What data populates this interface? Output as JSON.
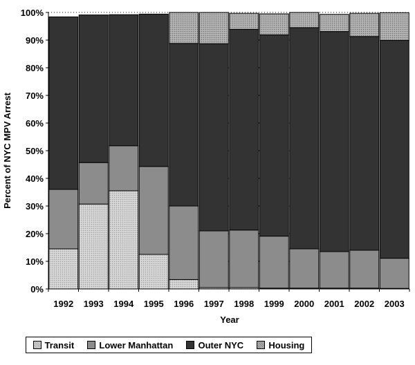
{
  "chart_data": {
    "type": "bar",
    "stacked": true,
    "categories": [
      "1992",
      "1993",
      "1994",
      "1995",
      "1996",
      "1997",
      "1998",
      "1999",
      "2000",
      "2001",
      "2002",
      "2003"
    ],
    "series": [
      {
        "name": "Transit",
        "color": "#c8c8c8",
        "pattern": "dots-light",
        "values": [
          14.5,
          30.7,
          35.5,
          12.5,
          3.4,
          0.5,
          0.5,
          0.3,
          0.3,
          0.3,
          0.3,
          0.2
        ]
      },
      {
        "name": "Lower Manhattan",
        "color": "#8c8c8c",
        "pattern": "none",
        "values": [
          21.5,
          15.0,
          16.3,
          31.8,
          26.6,
          20.5,
          20.8,
          18.8,
          14.2,
          13.2,
          13.7,
          10.9
        ]
      },
      {
        "name": "Outer NYC",
        "color": "#333333",
        "pattern": "none",
        "values": [
          62.4,
          53.4,
          47.4,
          55.1,
          58.8,
          67.7,
          72.6,
          72.8,
          80.0,
          79.6,
          77.3,
          78.8
        ]
      },
      {
        "name": "Housing",
        "color": "#a6a6a6",
        "pattern": "dots-dark",
        "values": [
          0.0,
          0.0,
          0.0,
          0.0,
          11.2,
          11.3,
          5.8,
          7.6,
          5.5,
          6.2,
          8.4,
          10.0
        ]
      }
    ],
    "xlabel": "Year",
    "ylabel": "Percent of NYC MPV Arrest",
    "ylim": [
      0,
      100
    ],
    "yticks": [
      "0%",
      "10%",
      "20%",
      "30%",
      "40%",
      "50%",
      "60%",
      "70%",
      "80%",
      "90%",
      "100%"
    ],
    "grid": "horizontal-dotted",
    "legend_position": "bottom"
  }
}
